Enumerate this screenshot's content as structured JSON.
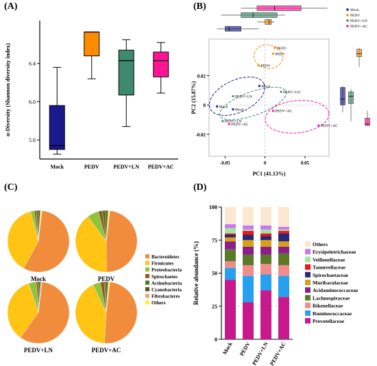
{
  "panels": {
    "a": "(A)",
    "b": "(B)",
    "c": "(C)",
    "d": "(D)"
  },
  "chart_data": [
    {
      "type": "boxplot",
      "ylabel": "α-Diversity (Shannon diversity index)",
      "ylim": [
        5.4,
        6.85
      ],
      "yticks": [
        "5.6",
        "6.0",
        "6.4"
      ],
      "ytick_values": [
        5.6,
        6.0,
        6.4
      ],
      "categories": [
        "Mock",
        "PEDV",
        "PEDV+LN",
        "PEDV+AC"
      ],
      "boxes": [
        {
          "name": "Mock",
          "min": 5.45,
          "q1": 5.5,
          "median": 5.54,
          "q3": 5.96,
          "max": 6.36,
          "color": "#1a1a8c"
        },
        {
          "name": "PEDV",
          "min": 6.24,
          "q1": 6.48,
          "median": 6.73,
          "q3": 6.73,
          "max": 6.73,
          "color": "#ff8c00"
        },
        {
          "name": "PEDV+LN",
          "min": 5.74,
          "q1": 6.07,
          "median": 6.43,
          "q3": 6.54,
          "max": 6.65,
          "color": "#3d8a6e"
        },
        {
          "name": "PEDV+AC",
          "min": 6.09,
          "q1": 6.26,
          "median": 6.43,
          "q3": 6.52,
          "max": 6.62,
          "color": "#ff1493"
        }
      ]
    },
    {
      "type": "scatter",
      "xlabel": "PC1 (41.13%)",
      "ylabel": "PC2 (15.87%)",
      "xlim": [
        -0.07,
        0.08
      ],
      "ylim": [
        -0.035,
        0.045
      ],
      "xticks": [
        "-0.05",
        "0",
        "0.05"
      ],
      "xtick_values": [
        -0.05,
        0,
        0.05
      ],
      "yticks": [
        "-0.02",
        "0",
        "0.02"
      ],
      "ytick_values": [
        -0.02,
        0,
        0.02
      ],
      "legend": [
        "Mock",
        "PEDV",
        "PEDV+LN",
        "PEDV+AC"
      ],
      "legend_colors": [
        "#1a1a8c",
        "#ff8c00",
        "#3d8a6e",
        "#ff1493"
      ],
      "points": [
        {
          "group": "Mock",
          "label": "Mock",
          "x": -0.007,
          "y": 0.013
        },
        {
          "group": "Mock",
          "label": "Mock",
          "x": -0.06,
          "y": -0.001
        },
        {
          "group": "Mock",
          "label": "Mock",
          "x": -0.04,
          "y": -0.003
        },
        {
          "group": "PEDV",
          "label": "PEDV",
          "x": 0.012,
          "y": 0.039
        },
        {
          "group": "PEDV",
          "label": "PEDV",
          "x": 0.01,
          "y": 0.035
        },
        {
          "group": "PEDV",
          "label": "PEDV",
          "x": -0.008,
          "y": 0.027
        },
        {
          "group": "PEDV+LN",
          "label": "PEDV+LN",
          "x": -0.04,
          "y": 0.006
        },
        {
          "group": "PEDV+LN",
          "label": "PEDV+LN",
          "x": 0.02,
          "y": 0.009
        },
        {
          "group": "PEDV+LN",
          "label": "PEDV+LN",
          "x": -0.053,
          "y": -0.011
        },
        {
          "group": "PEDV+AC",
          "label": "PEDV+AC",
          "x": -0.045,
          "y": -0.013
        },
        {
          "group": "PEDV+AC",
          "label": "PEDV+AC",
          "x": 0.01,
          "y": -0.004
        },
        {
          "group": "PEDV+AC",
          "label": "PEDV+AC",
          "x": 0.067,
          "y": -0.014
        }
      ],
      "ellipses": [
        {
          "group": "Mock",
          "cx": -0.035,
          "cy": 0.006,
          "rx": 0.037,
          "ry": 0.011,
          "angle": -25
        },
        {
          "group": "PEDV",
          "cx": 0.004,
          "cy": 0.033,
          "rx": 0.018,
          "ry": 0.008,
          "angle": 10
        },
        {
          "group": "PEDV+LN",
          "cx": -0.015,
          "cy": 0.001,
          "rx": 0.044,
          "ry": 0.008,
          "angle": -20
        },
        {
          "group": "PEDV+AC",
          "cx": 0.04,
          "cy": -0.008,
          "rx": 0.04,
          "ry": 0.011,
          "angle": -6
        }
      ],
      "marginal_top": [
        {
          "group": "PEDV+AC",
          "min": -0.03,
          "q1": -0.01,
          "median": 0.012,
          "q3": 0.045,
          "max": 0.078
        },
        {
          "group": "PEDV+LN",
          "min": -0.055,
          "q1": -0.03,
          "median": -0.015,
          "q3": 0.015,
          "max": 0.025
        },
        {
          "group": "PEDV",
          "min": -0.01,
          "q1": 0.0,
          "median": 0.005,
          "q3": 0.008,
          "max": 0.012
        },
        {
          "group": "Mock",
          "min": -0.06,
          "q1": -0.05,
          "median": -0.045,
          "q3": -0.03,
          "max": -0.008
        }
      ],
      "marginal_right": [
        {
          "group": "Mock",
          "min": -0.005,
          "q1": 0.0,
          "median": 0.004,
          "q3": 0.012,
          "max": 0.013
        },
        {
          "group": "PEDV+LN",
          "min": -0.011,
          "q1": 0.001,
          "median": 0.006,
          "q3": 0.009,
          "max": 0.011
        },
        {
          "group": "PEDV",
          "min": 0.026,
          "q1": 0.033,
          "median": 0.035,
          "q3": 0.038,
          "max": 0.039
        },
        {
          "group": "PEDV+AC",
          "min": -0.014,
          "q1": -0.014,
          "median": -0.013,
          "q3": -0.009,
          "max": -0.004
        }
      ]
    },
    {
      "type": "pie",
      "legend": [
        "Bacteroidetes",
        "Firmicutes",
        "Proteobacteria",
        "Spirochaetes",
        "Actinobacteria",
        "Cyanobacteria",
        "Fibrobacteres",
        "Others"
      ],
      "colors": [
        "#f08c3c",
        "#ffc414",
        "#8cc43c",
        "#a0501e",
        "#4a7a1e",
        "#5a5a14",
        "#f0a478",
        "#fff03c"
      ],
      "pies": [
        {
          "name": "Mock",
          "values": [
            56,
            38,
            2,
            1,
            1,
            1,
            0.5,
            0.5
          ]
        },
        {
          "name": "PEDV",
          "values": [
            48,
            40,
            6,
            2,
            2,
            1,
            0.5,
            0.5
          ]
        },
        {
          "name": "PEDV+LN",
          "values": [
            58,
            35,
            4,
            1,
            1,
            0.5,
            0.3,
            0.2
          ]
        },
        {
          "name": "PEDV+AC",
          "values": [
            49,
            42,
            4,
            2,
            1,
            1,
            0.5,
            0.5
          ]
        }
      ]
    },
    {
      "type": "stacked_bar",
      "ylabel": "Relative abundance (%)",
      "ylim": [
        0,
        100
      ],
      "yticks": [
        "0",
        "25",
        "50",
        "75",
        "100"
      ],
      "ytick_values": [
        0,
        25,
        50,
        75,
        100
      ],
      "categories": [
        "Mock",
        "PEDV",
        "PEDV+LN",
        "PEDV+AC"
      ],
      "series": [
        {
          "name": "Prevotellaceae",
          "color": "#c8198c",
          "values": [
            45,
            28,
            37,
            32
          ]
        },
        {
          "name": "Ruminococcaceae",
          "color": "#28a0f0",
          "values": [
            9,
            20,
            12,
            16
          ]
        },
        {
          "name": "Rikenellaceae",
          "color": "#f08c8c",
          "values": [
            5,
            8,
            8,
            8
          ]
        },
        {
          "name": "Lachnospiraceae",
          "color": "#5a7a28",
          "values": [
            9,
            8,
            7,
            9
          ]
        },
        {
          "name": "Acidaminococcaceae",
          "color": "#8c1e8c",
          "values": [
            6,
            6,
            6,
            5
          ]
        },
        {
          "name": "Muribaculaceae",
          "color": "#d8a014",
          "values": [
            3,
            5,
            5,
            4
          ]
        },
        {
          "name": "Spirochaetaceae",
          "color": "#28287a",
          "values": [
            2,
            4,
            3,
            6
          ]
        },
        {
          "name": "Tannerellaceae",
          "color": "#f01414",
          "values": [
            1,
            3,
            2,
            2
          ]
        },
        {
          "name": "Veillonellaceae",
          "color": "#a0e8a0",
          "values": [
            4,
            1,
            3,
            1
          ]
        },
        {
          "name": "Erysipelotrichaceae",
          "color": "#c878f0",
          "values": [
            3,
            3,
            3,
            2
          ]
        },
        {
          "name": "Others",
          "color": "#fce8d0",
          "values": [
            13,
            14,
            14,
            15
          ]
        }
      ]
    }
  ]
}
